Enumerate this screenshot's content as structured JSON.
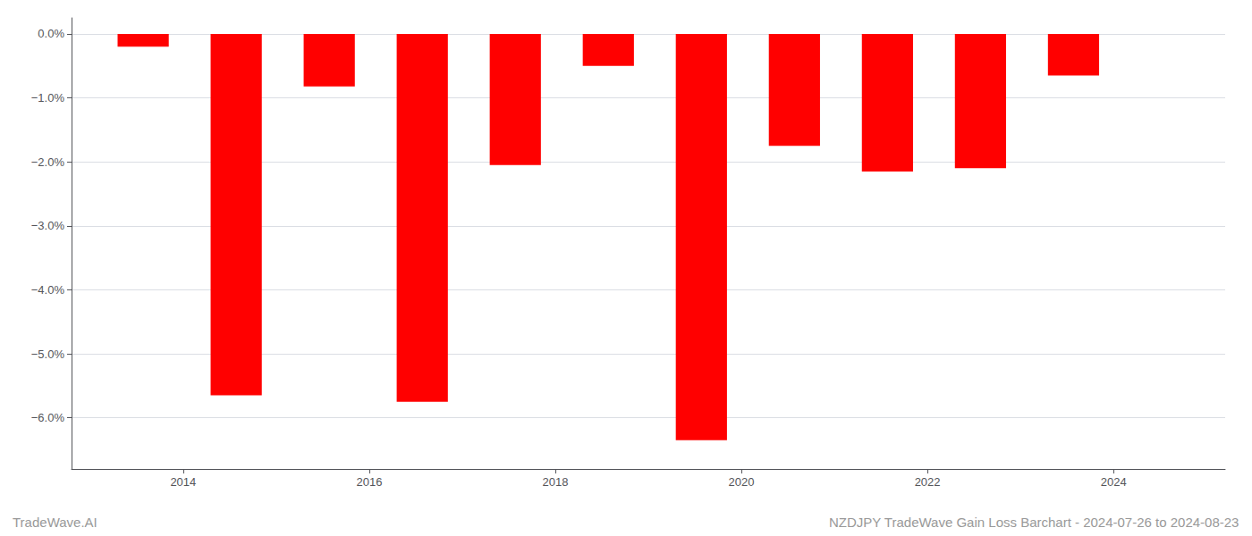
{
  "chart_data": {
    "type": "bar",
    "x": [
      2013.57,
      2014.57,
      2015.57,
      2016.57,
      2017.57,
      2018.57,
      2019.57,
      2020.57,
      2021.57,
      2022.57,
      2023.57
    ],
    "values": [
      -0.2,
      -5.65,
      -0.82,
      -5.75,
      -2.05,
      -0.5,
      -6.35,
      -1.75,
      -2.15,
      -2.1,
      -0.65
    ],
    "color": "#ff0000",
    "xlim": [
      2012.8,
      2025.2
    ],
    "xticks": [
      2014,
      2016,
      2018,
      2020,
      2022,
      2024
    ],
    "ylim": [
      -6.8,
      0.25
    ],
    "yticks": [
      {
        "value": 0.0,
        "label": "0.0%"
      },
      {
        "value": -1.0,
        "label": "−1.0%"
      },
      {
        "value": -2.0,
        "label": "−2.0%"
      },
      {
        "value": -3.0,
        "label": "−3.0%"
      },
      {
        "value": -4.0,
        "label": "−4.0%"
      },
      {
        "value": -5.0,
        "label": "−5.0%"
      },
      {
        "value": -6.0,
        "label": "−6.0%"
      }
    ],
    "grid": true,
    "annotations": [
      "TradeWave.AI",
      "NZDJPY TradeWave Gain Loss Barchart - 2024-07-26 to 2024-08-23"
    ]
  }
}
